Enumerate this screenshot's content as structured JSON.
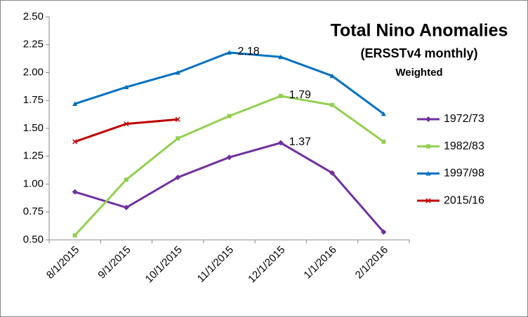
{
  "chart_data": {
    "type": "line",
    "title": "Total Nino Anomalies",
    "subtitle": "(ERSSTv4 monthly)",
    "note": "Weighted",
    "categories": [
      "8/1/2015",
      "9/1/2015",
      "10/1/2015",
      "11/1/2015",
      "12/1/2015",
      "1/1/2016",
      "2/1/2016"
    ],
    "series": [
      {
        "name": "1972/73",
        "color": "#7030a0",
        "marker": "diamond",
        "values": [
          0.93,
          0.79,
          1.06,
          1.24,
          1.37,
          1.1,
          0.57
        ],
        "value_labels": [
          null,
          null,
          null,
          null,
          "1.37",
          null,
          null
        ]
      },
      {
        "name": "1982/83",
        "color": "#92d050",
        "marker": "square",
        "values": [
          0.54,
          1.04,
          1.41,
          1.61,
          1.79,
          1.71,
          1.38
        ],
        "value_labels": [
          null,
          null,
          null,
          null,
          "1.79",
          null,
          null
        ]
      },
      {
        "name": "1997/98",
        "color": "#0070c0",
        "marker": "triangle",
        "values": [
          1.72,
          1.87,
          2.0,
          2.18,
          2.14,
          1.97,
          1.63
        ],
        "value_labels": [
          null,
          null,
          null,
          "2.18",
          null,
          null,
          null
        ]
      },
      {
        "name": "2015/16",
        "color": "#c00000",
        "marker": "x",
        "values": [
          1.38,
          1.54,
          1.58,
          null,
          null,
          null,
          null
        ]
      }
    ],
    "ylim": [
      0.5,
      2.5
    ],
    "yticks": [
      {
        "value": 0.5,
        "label": "0.50"
      },
      {
        "value": 0.75,
        "label": "0.75"
      },
      {
        "value": 1.0,
        "label": "1.00"
      },
      {
        "value": 1.25,
        "label": "1.25"
      },
      {
        "value": 1.5,
        "label": "1.50"
      },
      {
        "value": 1.75,
        "label": "1.75"
      },
      {
        "value": 2.0,
        "label": "2.00"
      },
      {
        "value": 2.25,
        "label": "2.25"
      },
      {
        "value": 2.5,
        "label": "2.50"
      }
    ],
    "grid": false,
    "legend": "right"
  }
}
